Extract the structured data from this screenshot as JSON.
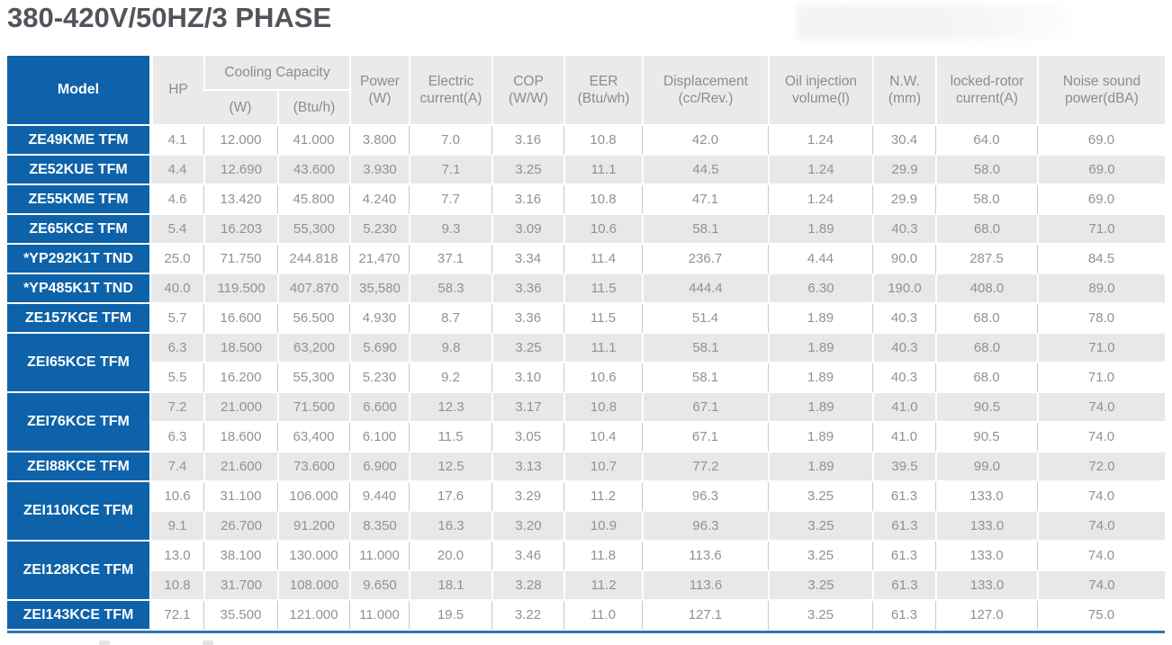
{
  "page": {
    "title": "380-420V/50HZ/3 PHASE"
  },
  "colors": {
    "brand_blue": "#0e62a9",
    "header_gray": "#eaeaea",
    "stripe_gray": "#e8e8e8",
    "bottom_line_blue": "#2c74b5",
    "title_text": "#56525c",
    "muted_text": "#8e9297"
  },
  "table": {
    "header": {
      "model": "Model",
      "hp": "HP",
      "cooling_capacity": {
        "label": "Cooling Capacity",
        "subs": [
          "(W)",
          "(Btu/h)"
        ]
      },
      "columns": [
        {
          "lines": [
            "Power",
            "(W)"
          ]
        },
        {
          "lines": [
            "Electric",
            "current(A)"
          ]
        },
        {
          "lines": [
            "COP",
            "(W/W)"
          ]
        },
        {
          "lines": [
            "EER",
            "(Btu/wh)"
          ]
        },
        {
          "lines": [
            "Displacement",
            "(cc/Rev.)"
          ]
        },
        {
          "lines": [
            "Oil injection",
            "volume(l)"
          ]
        },
        {
          "lines": [
            "N.W.",
            "(mm)"
          ]
        },
        {
          "lines": [
            "locked-rotor",
            "current(A)"
          ]
        },
        {
          "lines": [
            "Noise sound",
            "power(dBA)"
          ]
        }
      ]
    },
    "groups": [
      {
        "model": "ZE49KME TFM",
        "rows": [
          [
            "4.1",
            "12.000",
            "41.000",
            "3.800",
            "7.0",
            "3.16",
            "10.8",
            "42.0",
            "1.24",
            "30.4",
            "64.0",
            "69.0"
          ]
        ]
      },
      {
        "model": "ZE52KUE TFM",
        "rows": [
          [
            "4.4",
            "12.690",
            "43.600",
            "3.930",
            "7.1",
            "3.25",
            "11.1",
            "44.5",
            "1.24",
            "29.9",
            "58.0",
            "69.0"
          ]
        ]
      },
      {
        "model": "ZE55KME TFM",
        "rows": [
          [
            "4.6",
            "13.420",
            "45.800",
            "4.240",
            "7.7",
            "3.16",
            "10.8",
            "47.1",
            "1.24",
            "29.9",
            "58.0",
            "69.0"
          ]
        ]
      },
      {
        "model": "ZE65KCE TFM",
        "rows": [
          [
            "5.4",
            "16.203",
            "55,300",
            "5.230",
            "9.3",
            "3.09",
            "10.6",
            "58.1",
            "1.89",
            "40.3",
            "68.0",
            "71.0"
          ]
        ]
      },
      {
        "model": "*YP292K1T TND",
        "rows": [
          [
            "25.0",
            "71.750",
            "244.818",
            "21,470",
            "37.1",
            "3.34",
            "11.4",
            "236.7",
            "4.44",
            "90.0",
            "287.5",
            "84.5"
          ]
        ]
      },
      {
        "model": "*YP485K1T TND",
        "rows": [
          [
            "40.0",
            "119.500",
            "407.870",
            "35,580",
            "58.3",
            "3.36",
            "11.5",
            "444.4",
            "6.30",
            "190.0",
            "408.0",
            "89.0"
          ]
        ]
      },
      {
        "model": "ZE157KCE TFM",
        "rows": [
          [
            "5.7",
            "16.600",
            "56.500",
            "4.930",
            "8.7",
            "3.36",
            "11.5",
            "51.4",
            "1.89",
            "40.3",
            "68.0",
            "78.0"
          ]
        ]
      },
      {
        "model": "ZEI65KCE TFM",
        "rows": [
          [
            "6.3",
            "18.500",
            "63,200",
            "5.690",
            "9.8",
            "3.25",
            "11.1",
            "58.1",
            "1.89",
            "40.3",
            "68.0",
            "71.0"
          ],
          [
            "5.5",
            "16.200",
            "55,300",
            "5.230",
            "9.2",
            "3.10",
            "10.6",
            "58.1",
            "1.89",
            "40.3",
            "68.0",
            "71.0"
          ]
        ]
      },
      {
        "model": "ZEI76KCE TFM",
        "rows": [
          [
            "7.2",
            "21.000",
            "71.500",
            "6.600",
            "12.3",
            "3.17",
            "10.8",
            "67.1",
            "1.89",
            "41.0",
            "90.5",
            "74.0"
          ],
          [
            "6.3",
            "18.600",
            "63,400",
            "6.100",
            "11.5",
            "3.05",
            "10.4",
            "67.1",
            "1.89",
            "41.0",
            "90.5",
            "74.0"
          ]
        ]
      },
      {
        "model": "ZEI88KCE TFM",
        "rows": [
          [
            "7.4",
            "21.600",
            "73.600",
            "6.900",
            "12.5",
            "3.13",
            "10.7",
            "77.2",
            "1.89",
            "39.5",
            "99.0",
            "72.0"
          ]
        ]
      },
      {
        "model": "ZEI110KCE TFM",
        "rows": [
          [
            "10.6",
            "31.100",
            "106.000",
            "9.440",
            "17.6",
            "3.29",
            "11.2",
            "96.3",
            "3.25",
            "61.3",
            "133.0",
            "74.0"
          ],
          [
            "9.1",
            "26.700",
            "91.200",
            "8.350",
            "16.3",
            "3.20",
            "10.9",
            "96.3",
            "3.25",
            "61.3",
            "133.0",
            "74.0"
          ]
        ]
      },
      {
        "model": "ZEI128KCE TFM",
        "rows": [
          [
            "13.0",
            "38.100",
            "130.000",
            "11.000",
            "20.0",
            "3.46",
            "11.8",
            "113.6",
            "3.25",
            "61.3",
            "133.0",
            "74.0"
          ],
          [
            "10.8",
            "31.700",
            "108.000",
            "9.650",
            "18.1",
            "3.28",
            "11.2",
            "113.6",
            "3.25",
            "61.3",
            "133.0",
            "74.0"
          ]
        ]
      },
      {
        "model": "ZEI143KCE TFM",
        "rows": [
          [
            "72.1",
            "35.500",
            "121.000",
            "11.000",
            "19.5",
            "3.22",
            "11.0",
            "127.1",
            "3.25",
            "61.3",
            "127.0",
            "75.0"
          ]
        ]
      }
    ]
  }
}
